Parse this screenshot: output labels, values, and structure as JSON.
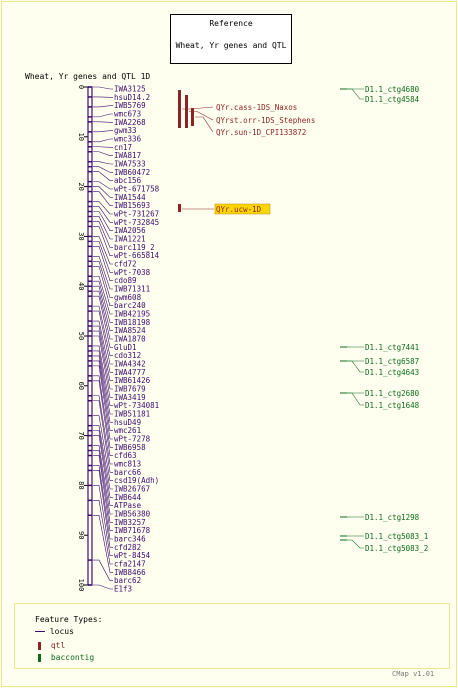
{
  "reference": {
    "heading": "Reference",
    "subtitle": "Wheat, Yr genes and QTL"
  },
  "map": {
    "title": "Wheat, Yr genes and QTL 1D",
    "ticks": [
      "0",
      "10",
      "20",
      "30",
      "40",
      "50",
      "60",
      "70",
      "80",
      "90",
      "100"
    ],
    "loci": [
      "IWA3125",
      "hsuD14.2",
      "IWB5769",
      "wmc673",
      "IWA2268",
      "gwm33",
      "wmc336",
      "cn17",
      "IWA817",
      "IWA7533",
      "IWB60472",
      "abc156",
      "wPt-671758",
      "IWA1544",
      "IWB15693",
      "wPt-731267",
      "wPt-732845",
      "IWA2056",
      "IWA1221",
      "barc119_2",
      "wPt-665814",
      "cfd72",
      "wPt-7038",
      "cdo89",
      "IWB71311",
      "gwm608",
      "barc240",
      "IWB42195",
      "IWB18198",
      "IWA8524",
      "IWA1870",
      "GluD1",
      "cdo312",
      "IWA4342",
      "IWA4777",
      "IWB61426",
      "IWB7679",
      "IWA3419",
      "wPt-734081",
      "IWB51181",
      "hsuD49",
      "wmc261",
      "wPt-7278",
      "IWB6958",
      "cfd63",
      "wmc813",
      "barc66",
      "csd19(Adh)",
      "IWB26767",
      "IWB644",
      "ATPase",
      "IWB56380",
      "IWB3257",
      "IWB71678",
      "barc346",
      "cfd282",
      "wPt-8454",
      "cfa2147",
      "IWB8466",
      "barc62",
      "E1f3"
    ],
    "qtl": [
      "QYr.cass-1DS_Naxos",
      "QYrst.orr-1DS_Stephens",
      "QYr.sun-1D_CPI133872",
      "QYr.ucw-1D"
    ],
    "contigs": [
      "D1.1_ctg4680",
      "D1.1_ctg4584",
      "D1.1_ctg7441",
      "D1.1_ctg6587",
      "D1.1_ctg4643",
      "D1.1_ctg2680",
      "D1.1_ctg1648",
      "D1.1_ctg1298",
      "D1.1_ctg5083_1",
      "D1.1_ctg5083_2"
    ]
  },
  "legend": {
    "title": "Feature Types:",
    "locus": "locus",
    "qtl": "qtl",
    "contig": "baccontig"
  },
  "credit": "CMap v1.01",
  "colors": {
    "locus": "#3d0a6e",
    "qtl": "#8b2525",
    "contig": "#0b6b1a",
    "highlight": "#ffd700"
  }
}
